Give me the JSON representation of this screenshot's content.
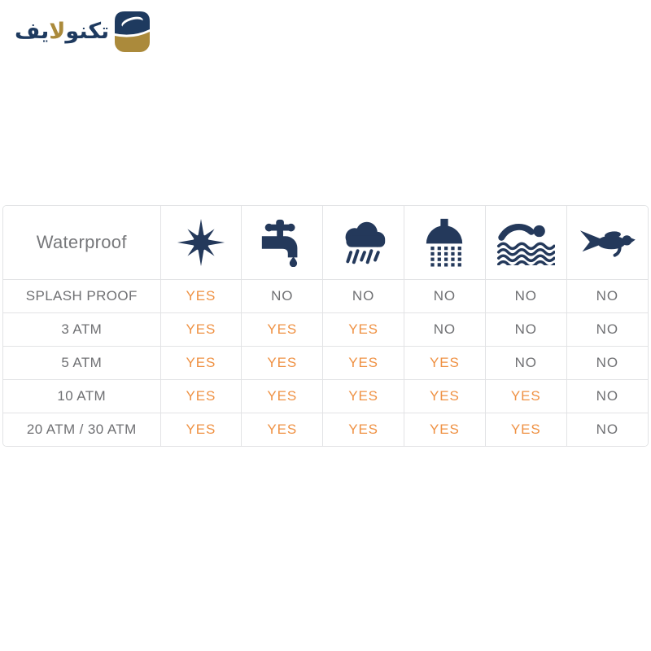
{
  "page": {
    "background": "#ffffff"
  },
  "logo": {
    "brand_name": "تكنولايف",
    "wordmark_navy_1": "تكنو",
    "wordmark_gold": "لا",
    "wordmark_navy_2": "يف",
    "icon": "technolife-swoosh-square-icon",
    "colors": {
      "navy": "#1e3a5f",
      "gold": "#ab8a3b"
    }
  },
  "table": {
    "title": "Waterproof",
    "columns": [
      {
        "icon": "sun-icon"
      },
      {
        "icon": "faucet-icon"
      },
      {
        "icon": "rain-cloud-icon"
      },
      {
        "icon": "shower-icon"
      },
      {
        "icon": "swimmer-icon"
      },
      {
        "icon": "diver-icon"
      }
    ],
    "rows": [
      {
        "label": "SPLASH PROOF",
        "values": [
          "YES",
          "NO",
          "NO",
          "NO",
          "NO",
          "NO"
        ]
      },
      {
        "label": "3 ATM",
        "values": [
          "YES",
          "YES",
          "YES",
          "NO",
          "NO",
          "NO"
        ]
      },
      {
        "label": "5 ATM",
        "values": [
          "YES",
          "YES",
          "YES",
          "YES",
          "NO",
          "NO"
        ]
      },
      {
        "label": "10 ATM",
        "values": [
          "YES",
          "YES",
          "YES",
          "YES",
          "YES",
          "NO"
        ]
      },
      {
        "label": "20 ATM / 30 ATM",
        "values": [
          "YES",
          "YES",
          "YES",
          "YES",
          "YES",
          "NO"
        ]
      }
    ],
    "colors": {
      "yes": "#ef9143",
      "no": "#6f7073",
      "icon": "#24395b",
      "border": "#e2e3e5",
      "title": "#77787b"
    }
  },
  "chart_data": {
    "type": "table",
    "title": "Waterproof",
    "columns": [
      "sun-sweat",
      "faucet-tap-water",
      "rain",
      "shower",
      "swimming",
      "diving"
    ],
    "categories": [
      "SPLASH PROOF",
      "3 ATM",
      "5 ATM",
      "10 ATM",
      "20 ATM / 30 ATM"
    ],
    "values": [
      [
        "YES",
        "NO",
        "NO",
        "NO",
        "NO",
        "NO"
      ],
      [
        "YES",
        "YES",
        "YES",
        "NO",
        "NO",
        "NO"
      ],
      [
        "YES",
        "YES",
        "YES",
        "YES",
        "NO",
        "NO"
      ],
      [
        "YES",
        "YES",
        "YES",
        "YES",
        "YES",
        "NO"
      ],
      [
        "YES",
        "YES",
        "YES",
        "YES",
        "YES",
        "NO"
      ]
    ]
  }
}
